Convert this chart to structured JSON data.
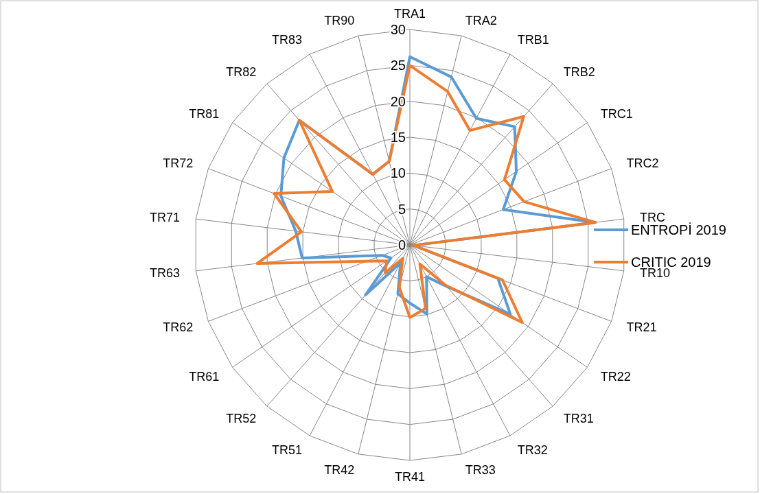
{
  "chart_data": {
    "type": "radar",
    "categories": [
      "TRA1",
      "TRA2",
      "TRB1",
      "TRB2",
      "TRC1",
      "TRC2",
      "TRC",
      "TR10",
      "TR21",
      "TR22",
      "TR31",
      "TR32",
      "TR33",
      "TR41",
      "TR42",
      "TR51",
      "TR52",
      "TR61",
      "TR62",
      "TR63",
      "TR71",
      "TR72",
      "TR81",
      "TR82",
      "TR83",
      "TR90"
    ],
    "series": [
      {
        "name": "ENTROPİ 2019",
        "color": "#5b9bd5",
        "values": [
          26.2,
          24.1,
          19.9,
          22,
          18,
          13.9,
          26,
          0.5,
          13.1,
          17,
          7.7,
          5,
          9.9,
          8.1,
          7,
          2.8,
          9.3,
          3.2,
          4.1,
          15.1,
          16,
          19.2,
          21.3,
          23.2,
          11.1,
          12
        ]
      },
      {
        "name": "CRITIC 2019",
        "color": "#ed7d31",
        "values": [
          25,
          22,
          18,
          23.9,
          16,
          17,
          26,
          0.5,
          13.8,
          19,
          7.5,
          3,
          9.1,
          10.1,
          6.1,
          2.1,
          5.2,
          3.9,
          6.4,
          21.4,
          15.2,
          20.2,
          13.1,
          23.2,
          11.1,
          12
        ]
      }
    ],
    "ylim": [
      0,
      30
    ],
    "yticks": [
      0,
      5,
      10,
      15,
      20,
      25,
      30
    ],
    "grid": true,
    "legend": "right"
  }
}
